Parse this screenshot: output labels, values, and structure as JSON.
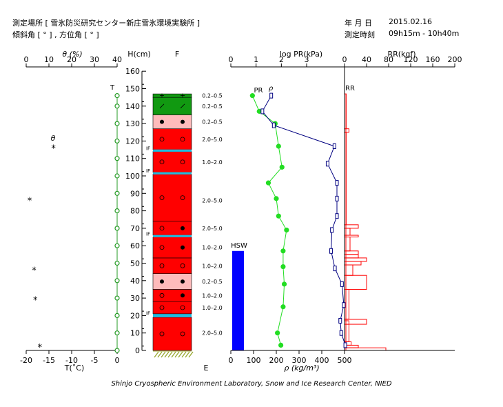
{
  "header": {
    "site_label": "測定場所 [ 雪氷防災研究センター新庄雪氷環境実験所 ]",
    "angle_label": "傾斜角 [ ° ] , 方位角 [ ° ]",
    "date_label": "年 月 日",
    "date_value": "2015.02.16",
    "time_label": "測定時刻",
    "time_value": "09h15m - 10h40m"
  },
  "footer": {
    "credit": "Shinjo Cryospheric Environment Laboratory, Snow and Ice Research Center, NIED"
  },
  "colors": {
    "temperature": "#229922",
    "density": "#22dd22",
    "pr": "#000080",
    "rr": "#ff0000",
    "hsw": "#0000ff",
    "granular": "#ff0000",
    "rounded_light": "#ffbbbb",
    "new_snow": "#119911",
    "ice_layer": "#22bbdd",
    "ground": "#99aa33"
  },
  "chart_data": [
    {
      "type": "line",
      "name": "temperature-moisture-panel",
      "top_axis_title": "θ (%)",
      "top_ticks": [
        0,
        10,
        20,
        30,
        40
      ],
      "bottom_axis_title": "T(˚C)",
      "bottom_ticks": [
        -20,
        -15,
        -10,
        -5,
        0
      ],
      "xlim_temperature": [
        -20,
        0
      ],
      "xlim_theta": [
        0,
        40
      ],
      "temperature_series_label": "T",
      "theta_series_label": "θ",
      "temperature": {
        "height_cm": [
          0,
          10,
          20,
          30,
          40,
          50,
          60,
          70,
          80,
          90,
          100,
          110,
          120,
          130,
          140,
          146
        ],
        "values": [
          0,
          0,
          0,
          0,
          0,
          0,
          0,
          0,
          0,
          0,
          0,
          0,
          0,
          0,
          0,
          0
        ]
      },
      "theta": {
        "height_cm": [
          2,
          29,
          46,
          86,
          116
        ],
        "values": [
          6,
          4,
          3.5,
          1.5,
          12
        ]
      }
    },
    {
      "type": "table",
      "name": "snow-stratigraphy",
      "axis_title": "H(cm)",
      "ylim": [
        0,
        160
      ],
      "y_ticks": [
        0,
        10,
        20,
        30,
        40,
        50,
        60,
        70,
        80,
        90,
        100,
        110,
        120,
        130,
        140,
        150,
        160
      ],
      "top_label": "F",
      "bottom_label": "E",
      "layers": [
        {
          "bottom": 0,
          "top": 19,
          "fill": "granular",
          "symbol": "open",
          "grain": "2.0–5.0",
          "grain_h": 10
        },
        {
          "bottom": 19,
          "top": 21,
          "fill": "ice",
          "symbol": "",
          "grain": "",
          "grain_h": null
        },
        {
          "bottom": 21,
          "top": 28,
          "fill": "granular",
          "symbol": "open",
          "grain": "1.0–2.0",
          "grain_h": 24.5
        },
        {
          "bottom": 28,
          "top": 35,
          "fill": "granular",
          "symbol": "mixed",
          "grain": "1.0–2.0",
          "grain_h": 31.5
        },
        {
          "bottom": 35,
          "top": 44,
          "fill": "light",
          "symbol": "filled",
          "grain": "0.2–0.5",
          "grain_h": 39.5
        },
        {
          "bottom": 44,
          "top": 53,
          "fill": "granular",
          "symbol": "open",
          "grain": "1.0–2.0",
          "grain_h": 48.5
        },
        {
          "bottom": 53,
          "top": 65,
          "fill": "granular",
          "symbol": "mixed",
          "grain": "1.0–2.0",
          "grain_h": 59
        },
        {
          "bottom": 65,
          "top": 66,
          "fill": "ice",
          "symbol": "",
          "grain": "",
          "grain_h": null
        },
        {
          "bottom": 66,
          "top": 74,
          "fill": "granular",
          "symbol": "mixed",
          "grain": "2.0–5.0",
          "grain_h": 70
        },
        {
          "bottom": 74,
          "top": 101,
          "fill": "granular",
          "symbol": "open",
          "grain": "2.0–5.0",
          "grain_h": 86
        },
        {
          "bottom": 101,
          "top": 102,
          "fill": "ice",
          "symbol": "",
          "grain": "",
          "grain_h": null
        },
        {
          "bottom": 102,
          "top": 114,
          "fill": "granular",
          "symbol": "open",
          "grain": "1.0–2.0",
          "grain_h": 108
        },
        {
          "bottom": 114,
          "top": 115,
          "fill": "ice",
          "symbol": "",
          "grain": "",
          "grain_h": null
        },
        {
          "bottom": 115,
          "top": 127,
          "fill": "granular",
          "symbol": "open",
          "grain": "2.0–5.0",
          "grain_h": 121
        },
        {
          "bottom": 127,
          "top": 135,
          "fill": "light",
          "symbol": "filled",
          "grain": "0.2–0.5",
          "grain_h": 131
        },
        {
          "bottom": 135,
          "top": 145,
          "fill": "new",
          "symbol": "slash",
          "grain": "0.2–0.5",
          "grain_h": 140
        },
        {
          "bottom": 145,
          "top": 147,
          "fill": "new",
          "symbol": "plus",
          "grain": "0.2–0.5",
          "grain_h": 146
        }
      ],
      "ice_layer_label": "IF",
      "ice_layers_cm": [
        20,
        65.5,
        101.5,
        114.5
      ]
    },
    {
      "type": "line",
      "name": "density-pr-rr-panel",
      "top_axis_title": "log PR(kPa)",
      "top_ticks": [
        0,
        1,
        2,
        3
      ],
      "xlim_logpr": [
        0,
        4.5
      ],
      "bottom_axis_title": "ρ (kg/m³)",
      "bottom_ticks": [
        0,
        100,
        200,
        300,
        400,
        500
      ],
      "xlim_density": [
        0,
        500
      ],
      "rr_axis_title": "RR(kgf)",
      "rr_ticks": [
        0,
        40,
        80,
        120,
        160,
        200
      ],
      "xlim_rr": [
        0,
        200
      ],
      "pr_label": "PR",
      "density_label": "ρ",
      "rr_label": "RR",
      "hsw_label": "HSW",
      "hsw_height_cm": 57,
      "density": {
        "height_cm": [
          3,
          10,
          25,
          38,
          48,
          57,
          69,
          77,
          87,
          96,
          105,
          117,
          130,
          137,
          146
        ],
        "values": [
          220,
          205,
          230,
          235,
          230,
          230,
          245,
          210,
          200,
          165,
          225,
          210,
          195,
          125,
          95
        ]
      },
      "pr": {
        "height_cm": [
          3,
          10,
          17,
          26,
          38,
          47,
          57,
          69,
          77,
          87,
          96,
          107,
          117,
          129,
          137,
          146
        ],
        "values_log": [
          4.53,
          4.37,
          4.33,
          4.47,
          4.4,
          4.12,
          3.97,
          4.0,
          4.2,
          4.2,
          4.2,
          3.83,
          4.1,
          1.7,
          1.25,
          1.6
        ]
      },
      "rr": {
        "intervals_cm": [
          [
            0,
            1.5
          ],
          [
            1.5,
            3
          ],
          [
            3,
            5
          ],
          [
            5,
            15
          ],
          [
            15,
            17
          ],
          [
            15,
            17.8
          ],
          [
            18,
            35
          ],
          [
            35,
            43
          ],
          [
            43,
            49
          ],
          [
            49,
            51
          ],
          [
            51,
            53
          ],
          [
            53,
            55
          ],
          [
            55,
            57
          ],
          [
            57,
            65
          ],
          [
            65,
            66
          ],
          [
            66,
            70
          ],
          [
            70,
            72
          ],
          [
            72,
            125
          ],
          [
            125,
            127
          ],
          [
            127,
            147
          ]
        ],
        "values_kgf": [
          75,
          25,
          12,
          8,
          8,
          40,
          8,
          40,
          15,
          30,
          40,
          25,
          25,
          10,
          25,
          10,
          25,
          3,
          8,
          3
        ]
      }
    }
  ]
}
